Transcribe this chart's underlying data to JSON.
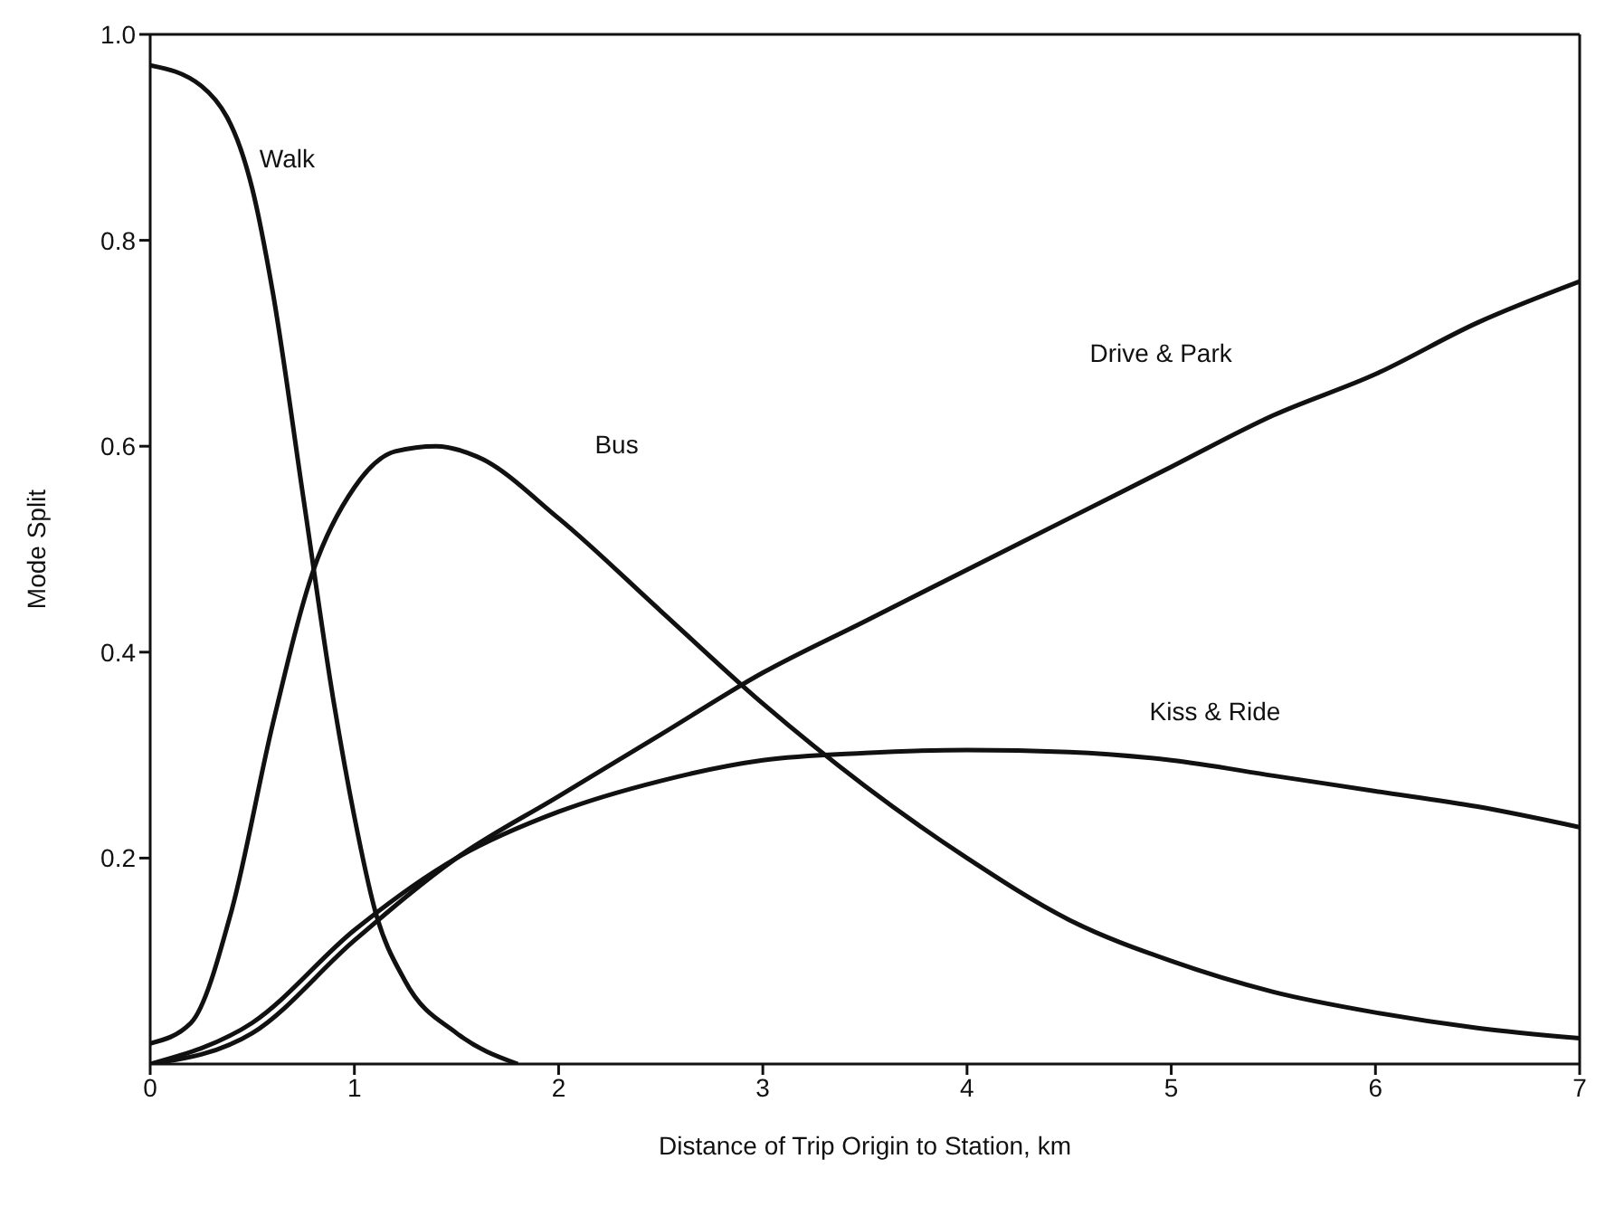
{
  "chart_data": {
    "type": "line",
    "xlabel": "Distance of Trip Origin to Station, km",
    "ylabel": "Mode Split",
    "xlim": [
      0,
      7
    ],
    "xticks": [
      0,
      1,
      2,
      3,
      4,
      5,
      6,
      7
    ],
    "ylim": [
      0,
      1
    ],
    "yticks": [
      0.2,
      0.4,
      0.6,
      0.8,
      {
        "value": 1,
        "label": "1.0"
      }
    ],
    "grid": false,
    "legend": false,
    "marker": "none",
    "line_style": "solid",
    "series": [
      {
        "name": "Walk",
        "color": "#111111",
        "x": [
          0,
          0.25,
          0.5,
          0.6,
          0.75,
          0.9,
          1.0,
          1.1,
          1.25,
          1.5,
          1.8
        ],
        "values": [
          0.97,
          0.95,
          0.85,
          0.75,
          0.55,
          0.35,
          0.24,
          0.15,
          0.08,
          0.03,
          0
        ]
      },
      {
        "name": "Bus",
        "color": "#111111",
        "x": [
          0,
          0.2,
          0.4,
          0.6,
          0.8,
          1.0,
          1.2,
          1.4,
          1.6,
          2.0,
          2.5,
          3.0,
          3.5,
          4.0,
          4.5,
          5.0,
          5.5,
          6.0,
          6.5,
          7.0
        ],
        "values": [
          0.02,
          0.04,
          0.15,
          0.33,
          0.48,
          0.56,
          0.595,
          0.6,
          0.59,
          0.53,
          0.44,
          0.35,
          0.27,
          0.2,
          0.14,
          0.1,
          0.07,
          0.05,
          0.035,
          0.025
        ]
      },
      {
        "name": "Drive & Park",
        "color": "#111111",
        "x": [
          0,
          0.5,
          1,
          1.5,
          2,
          2.5,
          3,
          3.5,
          4,
          4.5,
          5,
          5.5,
          6,
          6.5,
          7
        ],
        "values": [
          0,
          0.03,
          0.12,
          0.2,
          0.26,
          0.32,
          0.38,
          0.43,
          0.48,
          0.53,
          0.58,
          0.63,
          0.67,
          0.72,
          0.76
        ]
      },
      {
        "name": "Kiss & Ride",
        "color": "#111111",
        "x": [
          0,
          0.5,
          1,
          1.5,
          2,
          2.5,
          3,
          3.5,
          4,
          4.5,
          5,
          5.5,
          6,
          6.5,
          7
        ],
        "values": [
          0,
          0.04,
          0.13,
          0.2,
          0.245,
          0.275,
          0.295,
          0.302,
          0.305,
          0.303,
          0.295,
          0.28,
          0.265,
          0.25,
          0.23
        ]
      }
    ]
  }
}
